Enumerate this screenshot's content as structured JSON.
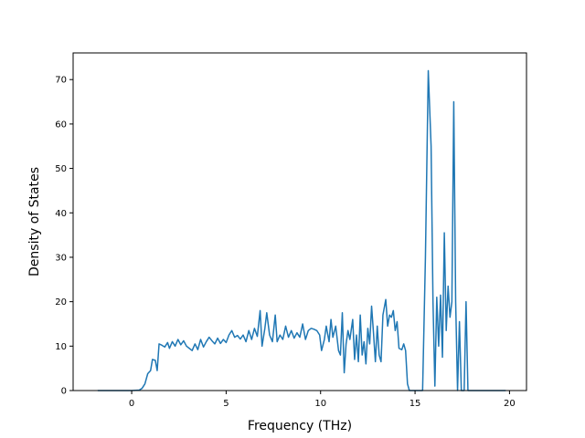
{
  "chart_data": {
    "type": "line",
    "title": "",
    "xlabel": "Frequency (THz)",
    "ylabel": "Density of States",
    "xlim": [
      -3.1,
      20.9
    ],
    "ylim": [
      0,
      76
    ],
    "xticks": [
      0,
      5,
      10,
      15,
      20
    ],
    "yticks": [
      0,
      10,
      20,
      30,
      40,
      50,
      60,
      70
    ],
    "grid": false,
    "legend": "none",
    "series": [
      {
        "color": "#1f77b4",
        "points": [
          [
            -1.8,
            0
          ],
          [
            0,
            0
          ],
          [
            0.4,
            0.1
          ],
          [
            0.55,
            0.5
          ],
          [
            0.7,
            1.5
          ],
          [
            0.85,
            3.8
          ],
          [
            1.0,
            4.5
          ],
          [
            1.1,
            7.0
          ],
          [
            1.25,
            6.8
          ],
          [
            1.35,
            4.5
          ],
          [
            1.45,
            10.5
          ],
          [
            1.6,
            10.2
          ],
          [
            1.75,
            9.8
          ],
          [
            1.9,
            10.8
          ],
          [
            2.0,
            9.5
          ],
          [
            2.15,
            11.0
          ],
          [
            2.3,
            10.0
          ],
          [
            2.45,
            11.5
          ],
          [
            2.6,
            10.3
          ],
          [
            2.75,
            11.2
          ],
          [
            2.9,
            10.0
          ],
          [
            3.05,
            9.5
          ],
          [
            3.2,
            9.0
          ],
          [
            3.35,
            10.5
          ],
          [
            3.5,
            9.2
          ],
          [
            3.65,
            11.5
          ],
          [
            3.8,
            9.8
          ],
          [
            3.95,
            11.0
          ],
          [
            4.1,
            12.0
          ],
          [
            4.25,
            11.2
          ],
          [
            4.4,
            10.5
          ],
          [
            4.55,
            11.8
          ],
          [
            4.7,
            10.6
          ],
          [
            4.85,
            11.5
          ],
          [
            5.0,
            10.8
          ],
          [
            5.15,
            12.5
          ],
          [
            5.3,
            13.5
          ],
          [
            5.45,
            12.0
          ],
          [
            5.6,
            12.4
          ],
          [
            5.75,
            11.6
          ],
          [
            5.9,
            12.5
          ],
          [
            6.05,
            11.0
          ],
          [
            6.2,
            13.5
          ],
          [
            6.35,
            11.5
          ],
          [
            6.5,
            14.0
          ],
          [
            6.65,
            12.2
          ],
          [
            6.8,
            18.0
          ],
          [
            6.9,
            10.0
          ],
          [
            7.05,
            14.0
          ],
          [
            7.15,
            17.5
          ],
          [
            7.3,
            12.5
          ],
          [
            7.45,
            11.0
          ],
          [
            7.6,
            17.0
          ],
          [
            7.7,
            11.0
          ],
          [
            7.85,
            12.5
          ],
          [
            8.0,
            11.5
          ],
          [
            8.15,
            14.5
          ],
          [
            8.3,
            12.0
          ],
          [
            8.45,
            13.5
          ],
          [
            8.6,
            11.8
          ],
          [
            8.75,
            13.0
          ],
          [
            8.9,
            12.0
          ],
          [
            9.05,
            15.0
          ],
          [
            9.2,
            11.5
          ],
          [
            9.35,
            13.5
          ],
          [
            9.5,
            14.0
          ],
          [
            9.65,
            13.8
          ],
          [
            9.8,
            13.5
          ],
          [
            9.95,
            12.5
          ],
          [
            10.05,
            9.0
          ],
          [
            10.2,
            11.5
          ],
          [
            10.3,
            14.5
          ],
          [
            10.45,
            11.0
          ],
          [
            10.55,
            16.0
          ],
          [
            10.65,
            12.0
          ],
          [
            10.8,
            14.5
          ],
          [
            10.95,
            9.0
          ],
          [
            11.05,
            8.0
          ],
          [
            11.15,
            17.5
          ],
          [
            11.25,
            4.0
          ],
          [
            11.35,
            10.5
          ],
          [
            11.45,
            13.5
          ],
          [
            11.55,
            11.5
          ],
          [
            11.7,
            16.0
          ],
          [
            11.8,
            7.0
          ],
          [
            11.9,
            12.5
          ],
          [
            12.0,
            6.5
          ],
          [
            12.1,
            17.0
          ],
          [
            12.2,
            8.0
          ],
          [
            12.3,
            11.0
          ],
          [
            12.4,
            6.0
          ],
          [
            12.5,
            14.0
          ],
          [
            12.6,
            10.5
          ],
          [
            12.7,
            19.0
          ],
          [
            12.8,
            13.0
          ],
          [
            12.9,
            6.5
          ],
          [
            13.0,
            14.5
          ],
          [
            13.1,
            8.0
          ],
          [
            13.2,
            6.5
          ],
          [
            13.3,
            17.0
          ],
          [
            13.45,
            20.5
          ],
          [
            13.55,
            14.5
          ],
          [
            13.65,
            17.0
          ],
          [
            13.75,
            16.5
          ],
          [
            13.85,
            18.0
          ],
          [
            13.95,
            13.5
          ],
          [
            14.05,
            15.5
          ],
          [
            14.15,
            9.5
          ],
          [
            14.3,
            9.2
          ],
          [
            14.4,
            10.5
          ],
          [
            14.5,
            9.0
          ],
          [
            14.6,
            1.5
          ],
          [
            14.7,
            0
          ],
          [
            15.4,
            0
          ],
          [
            15.55,
            30.0
          ],
          [
            15.7,
            72.0
          ],
          [
            15.85,
            55.0
          ],
          [
            15.95,
            20.0
          ],
          [
            16.05,
            1.0
          ],
          [
            16.15,
            21.0
          ],
          [
            16.25,
            10.0
          ],
          [
            16.35,
            21.5
          ],
          [
            16.45,
            7.5
          ],
          [
            16.55,
            35.5
          ],
          [
            16.65,
            13.5
          ],
          [
            16.75,
            23.5
          ],
          [
            16.85,
            16.5
          ],
          [
            16.95,
            20.0
          ],
          [
            17.05,
            65.0
          ],
          [
            17.15,
            20.0
          ],
          [
            17.25,
            0
          ],
          [
            17.35,
            15.5
          ],
          [
            17.45,
            0
          ],
          [
            17.6,
            0
          ],
          [
            17.7,
            20.0
          ],
          [
            17.8,
            0
          ],
          [
            19.8,
            0
          ]
        ]
      }
    ]
  }
}
